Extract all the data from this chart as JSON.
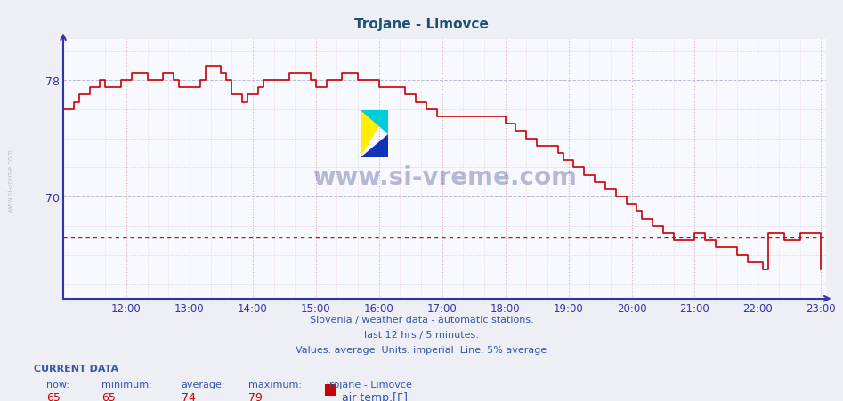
{
  "title": "Trojane - Limovce",
  "title_color": "#1a5276",
  "bg_color": "#eeeef5",
  "plot_bg_color": "#f8f8ff",
  "line_color": "#cc0000",
  "avg_line_color": "#cc0000",
  "avg_line_value": 67.2,
  "axis_color": "#3333aa",
  "ylabel_color": "#3333aa",
  "grid_color_h": "#aaaacc",
  "grid_color_v": "#ddaaaa",
  "xmin": 11.0,
  "xmax": 23.08,
  "ymin": 63.0,
  "ymax": 80.8,
  "yticks": [
    70,
    78
  ],
  "xtick_labels": [
    "12:00",
    "13:00",
    "14:00",
    "15:00",
    "16:00",
    "17:00",
    "18:00",
    "19:00",
    "20:00",
    "21:00",
    "22:00",
    "23:00"
  ],
  "xtick_hours": [
    12,
    13,
    14,
    15,
    16,
    17,
    18,
    19,
    20,
    21,
    22,
    23
  ],
  "watermark": "www.si-vreme.com",
  "watermark_color": "#1a2a6e",
  "watermark_alpha": 0.3,
  "footer_line1": "Slovenia / weather data - automatic stations.",
  "footer_line2": "last 12 hrs / 5 minutes.",
  "footer_line3": "Values: average  Units: imperial  Line: 5% average",
  "footer_color": "#3355aa",
  "current_label": "CURRENT DATA",
  "now_label": "now:",
  "min_label": "minimum:",
  "avg_label": "average:",
  "max_label": "maximum:",
  "station_label": "Trojane - Limovce",
  "series_label": "air temp.[F]",
  "now_val": "65",
  "min_val": "65",
  "avg_val": "74",
  "max_val": "79",
  "left_label": "www.si-vreme.com",
  "left_label_color": "#aaaaaa",
  "data_x": [
    11.0,
    11.083,
    11.167,
    11.25,
    11.333,
    11.417,
    11.5,
    11.583,
    11.667,
    11.75,
    11.833,
    11.917,
    12.0,
    12.083,
    12.167,
    12.25,
    12.333,
    12.417,
    12.5,
    12.583,
    12.667,
    12.75,
    12.833,
    12.917,
    13.0,
    13.083,
    13.167,
    13.25,
    13.333,
    13.417,
    13.5,
    13.583,
    13.667,
    13.75,
    13.833,
    13.917,
    14.0,
    14.083,
    14.167,
    14.25,
    14.333,
    14.417,
    14.5,
    14.583,
    14.667,
    14.75,
    14.833,
    14.917,
    15.0,
    15.083,
    15.167,
    15.25,
    15.333,
    15.417,
    15.5,
    15.583,
    15.667,
    15.75,
    15.833,
    15.917,
    16.0,
    16.083,
    16.167,
    16.25,
    16.333,
    16.417,
    16.5,
    16.583,
    16.667,
    16.75,
    16.833,
    16.917,
    17.0,
    17.083,
    17.167,
    17.25,
    17.333,
    17.417,
    17.5,
    17.583,
    17.667,
    17.75,
    17.833,
    17.917,
    18.0,
    18.083,
    18.167,
    18.25,
    18.333,
    18.417,
    18.5,
    18.583,
    18.667,
    18.75,
    18.833,
    18.917,
    19.0,
    19.083,
    19.167,
    19.25,
    19.333,
    19.417,
    19.5,
    19.583,
    19.667,
    19.75,
    19.833,
    19.917,
    20.0,
    20.083,
    20.167,
    20.25,
    20.333,
    20.417,
    20.5,
    20.583,
    20.667,
    20.75,
    20.833,
    20.917,
    21.0,
    21.083,
    21.167,
    21.25,
    21.333,
    21.417,
    21.5,
    21.583,
    21.667,
    21.75,
    21.833,
    21.917,
    22.0,
    22.083,
    22.167,
    22.25,
    22.333,
    22.417,
    22.5,
    22.583,
    22.667,
    22.75,
    22.833,
    22.917,
    23.0
  ],
  "data_y": [
    76.0,
    76.0,
    76.5,
    77.0,
    77.0,
    77.5,
    77.5,
    78.0,
    77.5,
    77.5,
    77.5,
    78.0,
    78.0,
    78.5,
    78.5,
    78.5,
    78.0,
    78.0,
    78.0,
    78.5,
    78.5,
    78.0,
    77.5,
    77.5,
    77.5,
    77.5,
    78.0,
    79.0,
    79.0,
    79.0,
    78.5,
    78.0,
    77.0,
    77.0,
    76.5,
    77.0,
    77.0,
    77.5,
    78.0,
    78.0,
    78.0,
    78.0,
    78.0,
    78.5,
    78.5,
    78.5,
    78.5,
    78.0,
    77.5,
    77.5,
    78.0,
    78.0,
    78.0,
    78.5,
    78.5,
    78.5,
    78.0,
    78.0,
    78.0,
    78.0,
    77.5,
    77.5,
    77.5,
    77.5,
    77.5,
    77.0,
    77.0,
    76.5,
    76.5,
    76.0,
    76.0,
    75.5,
    75.5,
    75.5,
    75.5,
    75.5,
    75.5,
    75.5,
    75.5,
    75.5,
    75.5,
    75.5,
    75.5,
    75.5,
    75.0,
    75.0,
    74.5,
    74.5,
    74.0,
    74.0,
    73.5,
    73.5,
    73.5,
    73.5,
    73.0,
    72.5,
    72.5,
    72.0,
    72.0,
    71.5,
    71.5,
    71.0,
    71.0,
    70.5,
    70.5,
    70.0,
    70.0,
    69.5,
    69.5,
    69.0,
    68.5,
    68.5,
    68.0,
    68.0,
    67.5,
    67.5,
    67.0,
    67.0,
    67.0,
    67.0,
    67.5,
    67.5,
    67.0,
    67.0,
    66.5,
    66.5,
    66.5,
    66.5,
    66.0,
    66.0,
    65.5,
    65.5,
    65.5,
    65.0,
    67.5,
    67.5,
    67.5,
    67.0,
    67.0,
    67.0,
    67.5,
    67.5,
    67.5,
    67.5,
    65.0
  ]
}
